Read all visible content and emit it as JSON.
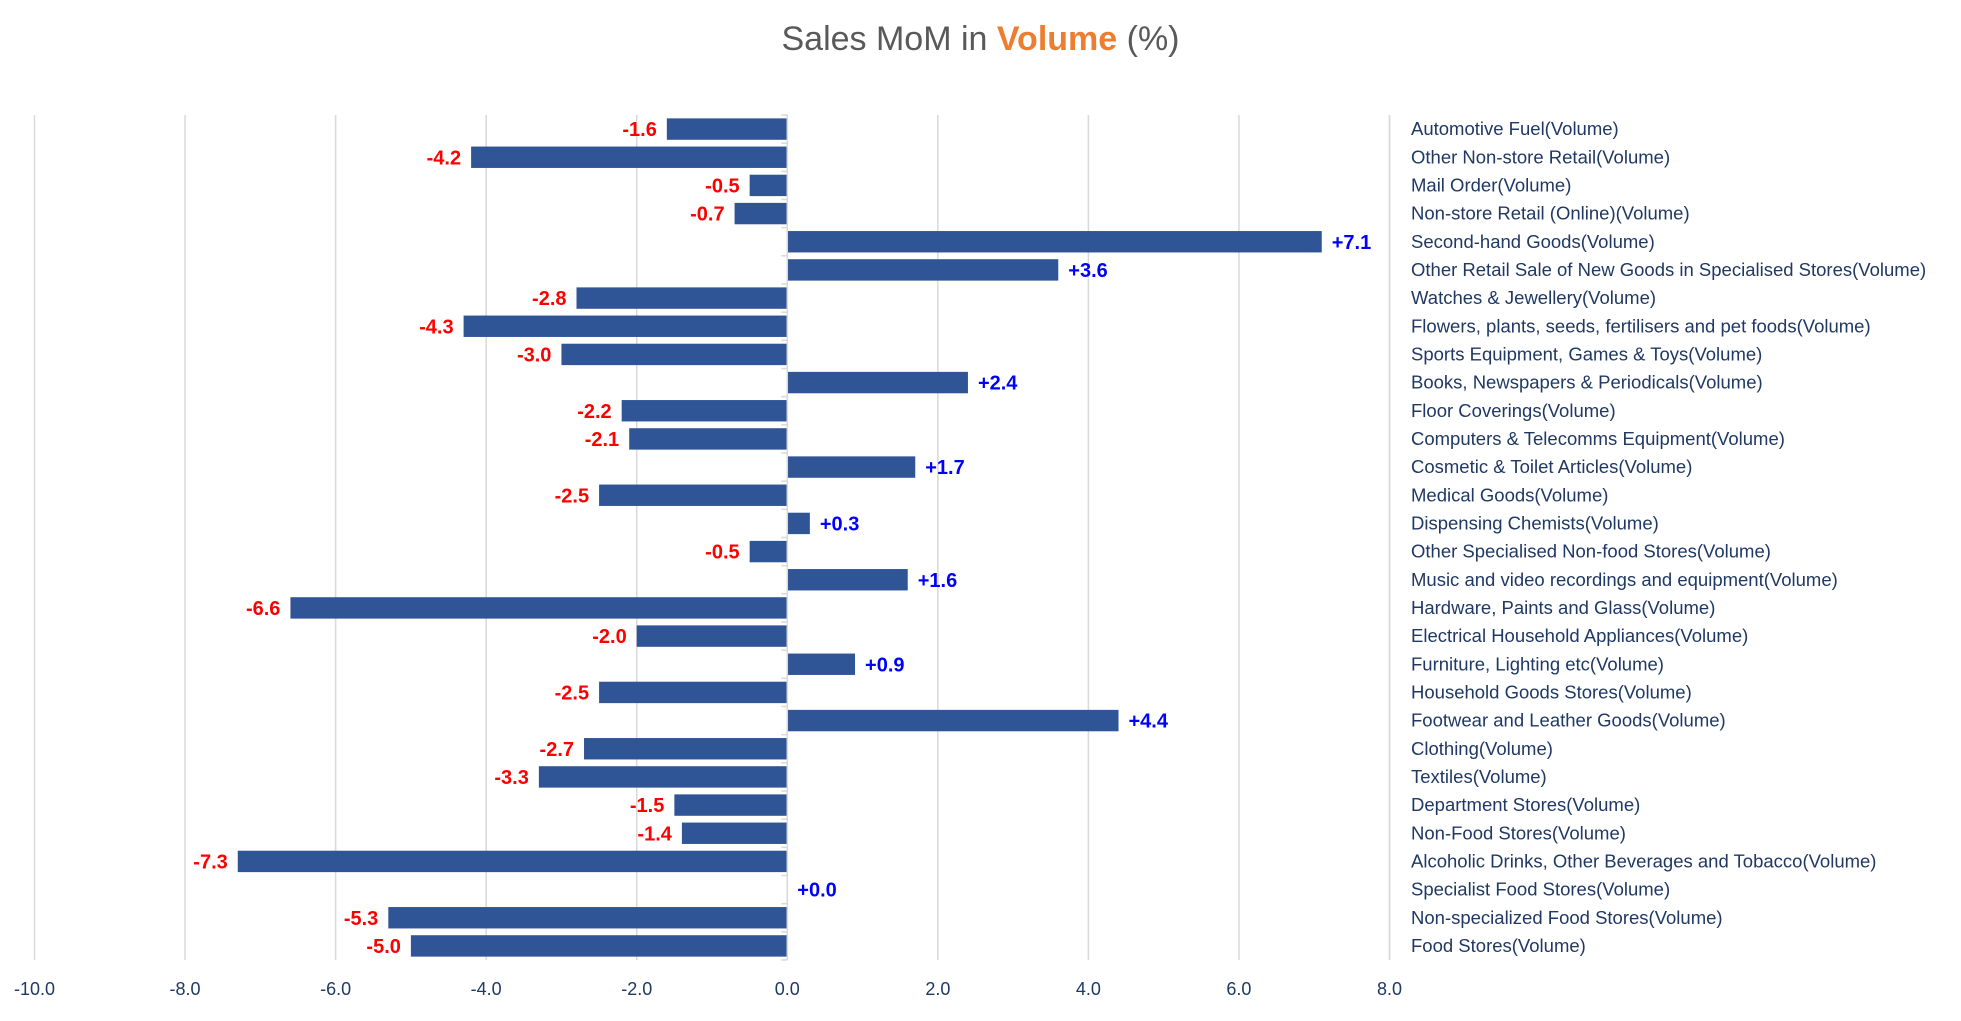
{
  "chart_data": {
    "type": "bar",
    "orientation": "horizontal",
    "title": "Sales MoM in Volume (%)",
    "title_parts": {
      "before": "Sales MoM in ",
      "accent": "Volume",
      "after": " (%)"
    },
    "xlabel": "",
    "ylabel": "",
    "xlim": [
      -10.0,
      8.0
    ],
    "x_ticks": [
      "-10.0",
      "-8.0",
      "-6.0",
      "-4.0",
      "-2.0",
      "0.0",
      "2.0",
      "4.0",
      "6.0",
      "8.0"
    ],
    "x_tick_values": [
      -10,
      -8,
      -6,
      -4,
      -2,
      0,
      2,
      4,
      6,
      8
    ],
    "grid": "vertical",
    "legend": "none",
    "category_labels_position": "right",
    "categories": [
      "Automotive Fuel(Volume)",
      "Other Non-store Retail(Volume)",
      "Mail Order(Volume)",
      "Non-store Retail (Online)(Volume)",
      "Second-hand Goods(Volume)",
      "Other Retail Sale of New Goods in Specialised Stores(Volume)",
      "Watches & Jewellery(Volume)",
      "Flowers, plants, seeds, fertilisers and pet foods(Volume)",
      "Sports Equipment, Games & Toys(Volume)",
      "Books, Newspapers & Periodicals(Volume)",
      "Floor Coverings(Volume)",
      "Computers & Telecomms Equipment(Volume)",
      "Cosmetic & Toilet Articles(Volume)",
      "Medical Goods(Volume)",
      "Dispensing Chemists(Volume)",
      "Other Specialised Non-food Stores(Volume)",
      "Music and video recordings and equipment(Volume)",
      "Hardware, Paints and Glass(Volume)",
      "Electrical Household Appliances(Volume)",
      "Furniture, Lighting etc(Volume)",
      "Household Goods Stores(Volume)",
      "Footwear and Leather Goods(Volume)",
      "Clothing(Volume)",
      "Textiles(Volume)",
      "Department Stores(Volume)",
      "Non-Food Stores(Volume)",
      "Alcoholic Drinks, Other Beverages and Tobacco(Volume)",
      "Specialist Food Stores(Volume)",
      "Non-specialized Food Stores(Volume)",
      "Food Stores(Volume)"
    ],
    "values": [
      -1.6,
      -4.2,
      -0.5,
      -0.7,
      7.1,
      3.6,
      -2.8,
      -4.3,
      -3.0,
      2.4,
      -2.2,
      -2.1,
      1.7,
      -2.5,
      0.3,
      -0.5,
      1.6,
      -6.6,
      -2.0,
      0.9,
      -2.5,
      4.4,
      -2.7,
      -3.3,
      -1.5,
      -1.4,
      -7.3,
      0.0,
      -5.3,
      -5.0
    ],
    "data_labels": [
      "-1.6",
      "-4.2",
      "-0.5",
      "-0.7",
      "+7.1",
      "+3.6",
      "-2.8",
      "-4.3",
      "-3.0",
      "+2.4",
      "-2.2",
      "-2.1",
      "+1.7",
      "-2.5",
      "+0.3",
      "-0.5",
      "+1.6",
      "-6.6",
      "-2.0",
      "+0.9",
      "-2.5",
      "+4.4",
      "-2.7",
      "-3.3",
      "-1.5",
      "-1.4",
      "-7.3",
      "+0.0",
      "-5.3",
      "-5.0"
    ],
    "colors": {
      "bar": "#2F5597",
      "positive_label": "#0000FF",
      "negative_label": "#FF0000",
      "title": "#595959",
      "title_accent": "#ED7D31",
      "axis_text": "#1F3864",
      "grid": "#D9D9D9"
    }
  }
}
